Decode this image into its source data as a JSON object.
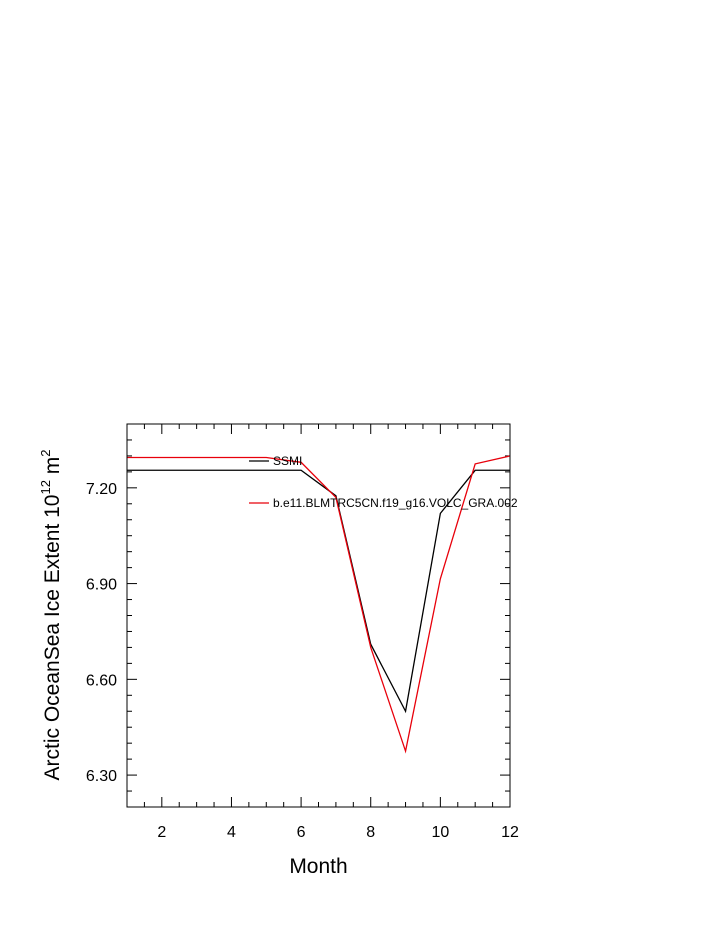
{
  "chart_data": {
    "type": "line",
    "xlabel": "Month",
    "ylabel": {
      "prefix": "Arctic OceanSea Ice Extent 10",
      "exp1": "12",
      "mid": " m",
      "exp2": "2"
    },
    "xlim": [
      1,
      12
    ],
    "ylim": [
      6.2,
      7.4
    ],
    "x_ticks": [
      2,
      4,
      6,
      8,
      10,
      12
    ],
    "x_tick_labels": [
      "2",
      "4",
      "6",
      "8",
      "10",
      "12"
    ],
    "y_ticks": [
      6.3,
      6.6,
      6.9,
      7.2
    ],
    "y_tick_labels": [
      "6.30",
      "6.60",
      "6.90",
      "7.20"
    ],
    "x": [
      1,
      2,
      3,
      4,
      5,
      6,
      7,
      8,
      9,
      10,
      11,
      12
    ],
    "series": [
      {
        "name": "SSMI",
        "color": "#000000",
        "values": [
          7.255,
          7.255,
          7.255,
          7.255,
          7.255,
          7.255,
          7.175,
          6.71,
          6.5,
          7.12,
          7.255,
          7.255
        ]
      },
      {
        "name": "b.e11.BLMTRC5CN.f19_g16.VOLC_GRA.002",
        "color": "#e8000b",
        "values": [
          7.295,
          7.295,
          7.295,
          7.295,
          7.295,
          7.28,
          7.17,
          6.7,
          6.375,
          6.915,
          7.275,
          7.3
        ]
      }
    ],
    "grid": false,
    "legend_position": "top-right"
  }
}
